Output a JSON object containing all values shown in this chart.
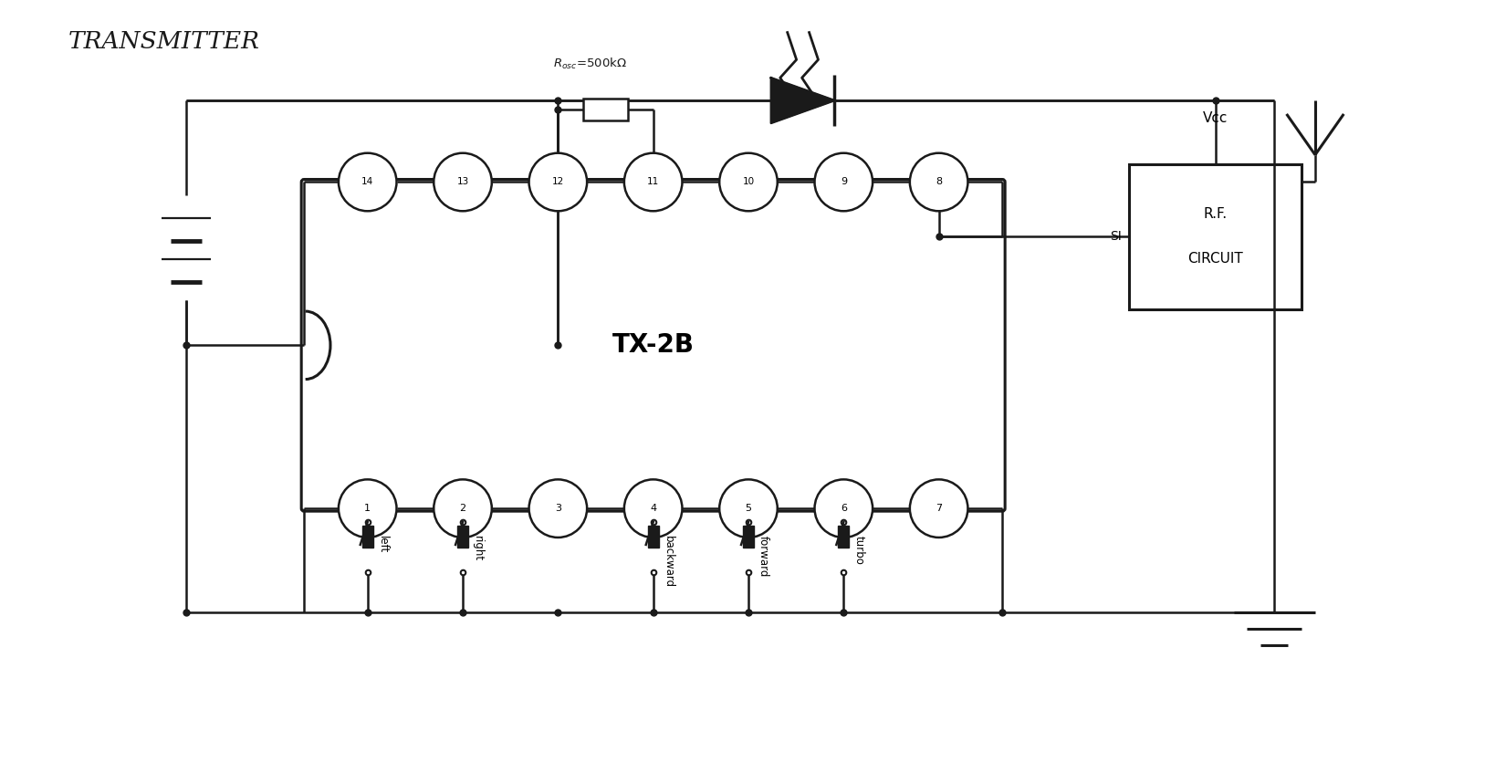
{
  "title": "TRANSMITTER",
  "ic_label": "TX-2B",
  "top_pins": [
    14,
    13,
    12,
    11,
    10,
    9,
    8
  ],
  "bot_pins": [
    1,
    2,
    3,
    4,
    5,
    6,
    7
  ],
  "switch_labels": [
    "left",
    "right",
    "backward",
    "forward",
    "turbo"
  ],
  "switch_pin_indices": [
    0,
    1,
    2,
    3,
    4
  ],
  "switch_bot_pins": [
    0,
    1,
    3,
    4,
    5
  ],
  "rf_label_1": "R.F.",
  "rf_label_2": "CIRCUIT",
  "rosc_text": "R",
  "rosc_sub": "osc",
  "rosc_val": "=500k Ω",
  "vcc_label": "Vcc",
  "si_label": "SI",
  "bg_color": "#ffffff",
  "line_color": "#1a1a1a"
}
